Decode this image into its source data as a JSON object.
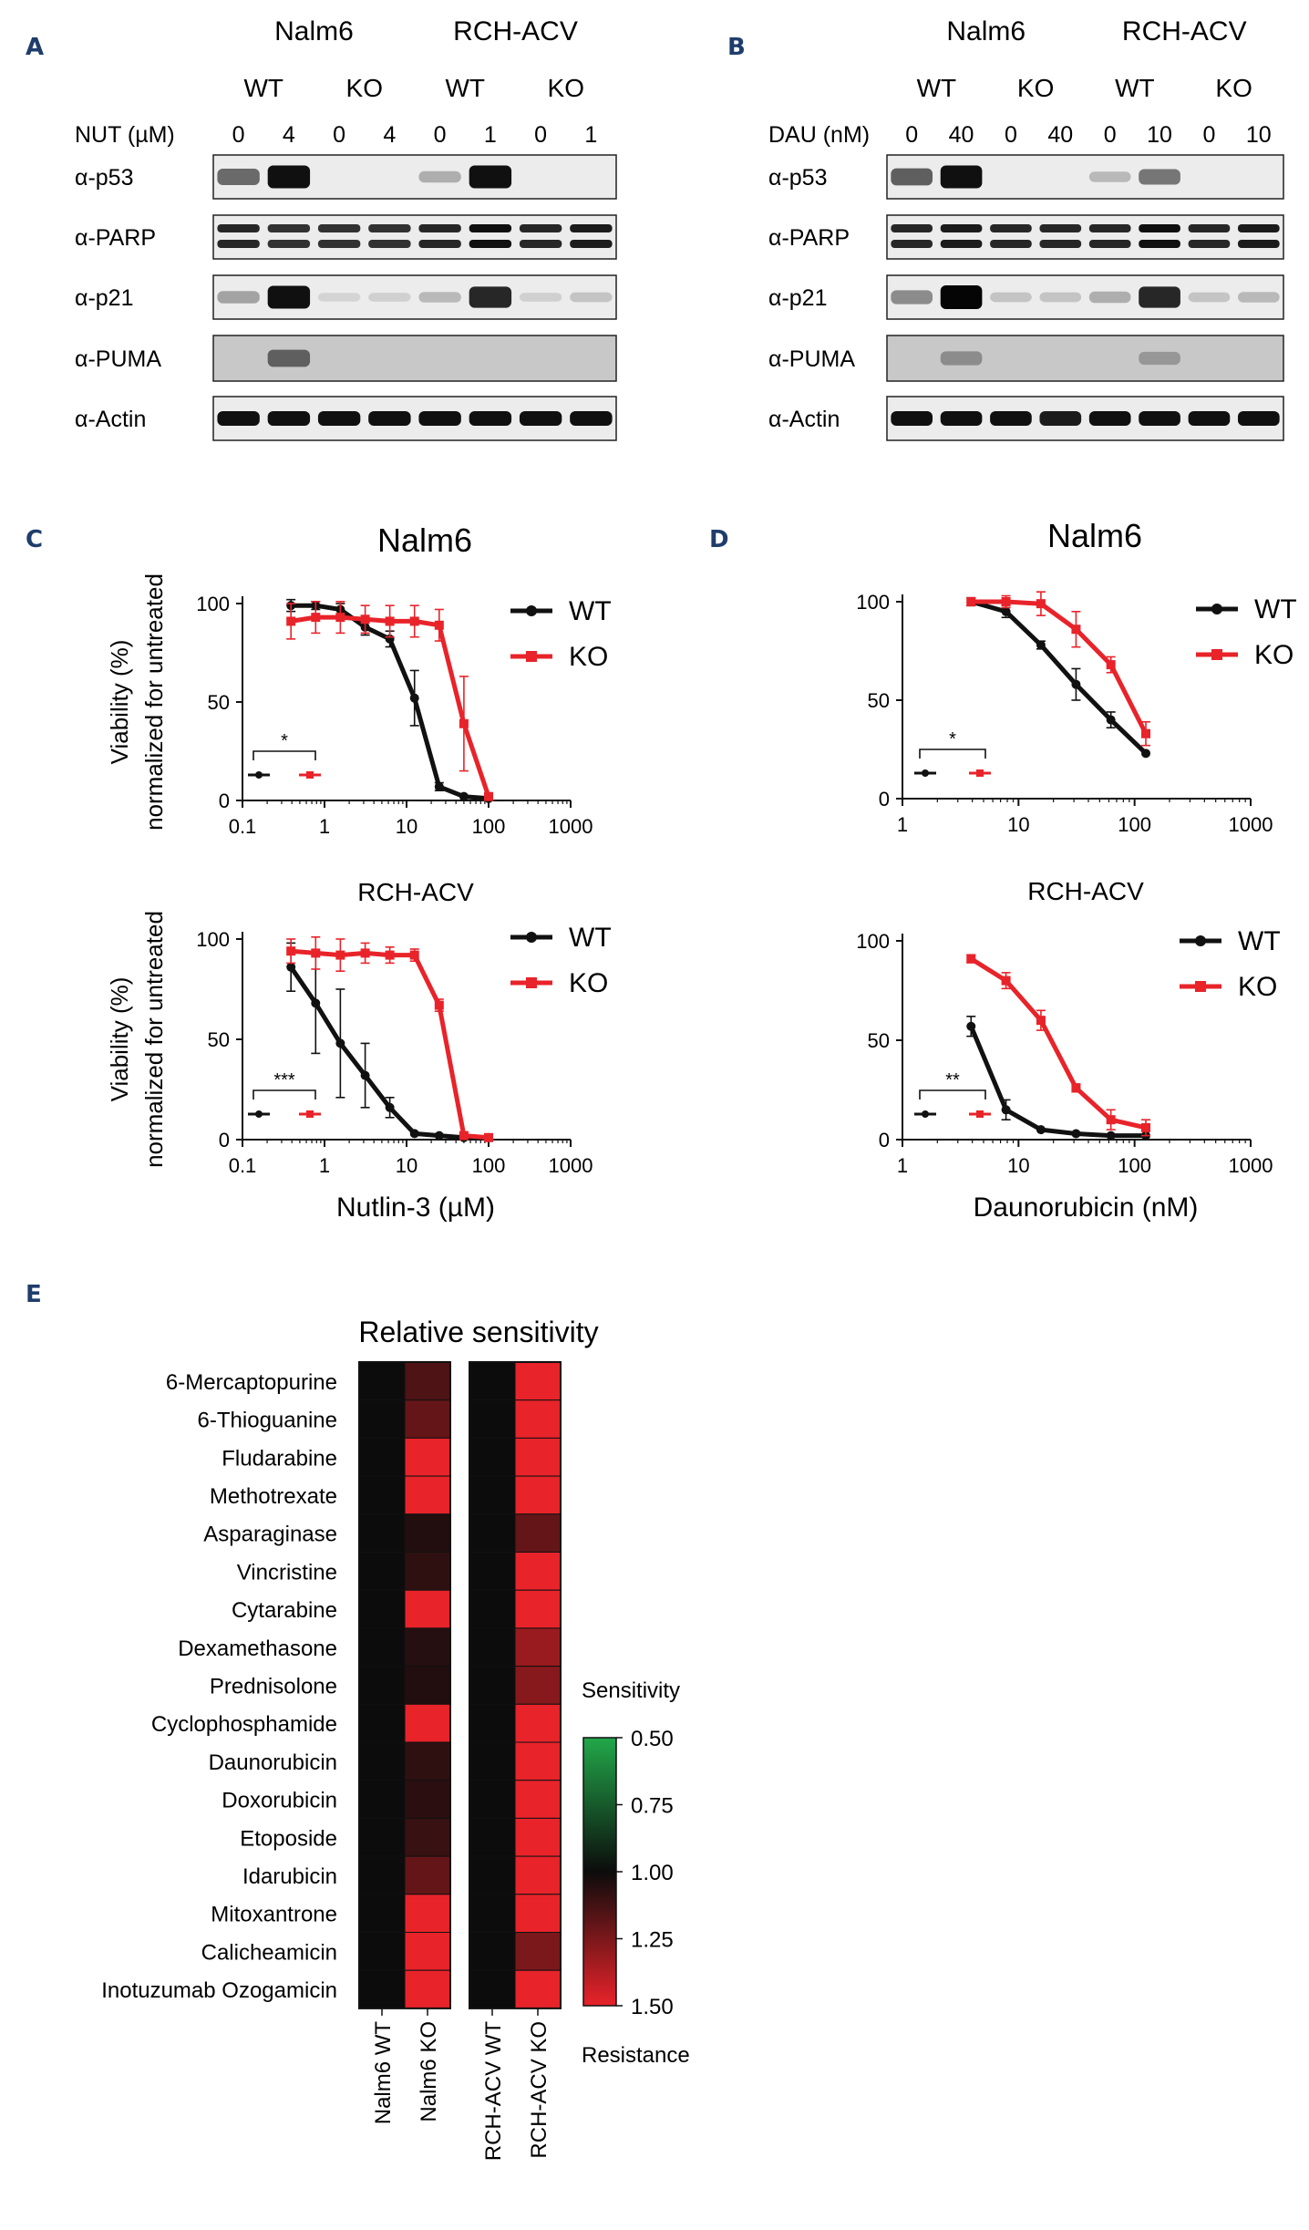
{
  "panel_labels": [
    "A",
    "B",
    "C",
    "D",
    "E"
  ],
  "blots": [
    {
      "id": "A",
      "cell_lines": [
        "Nalm6",
        "RCH-ACV"
      ],
      "genotypes": [
        "WT",
        "KO",
        "WT",
        "KO"
      ],
      "treatment_label": "NUT (µM)",
      "doses": [
        "0",
        "4",
        "0",
        "4",
        "0",
        "1",
        "0",
        "1"
      ],
      "rows": [
        "α-p53",
        "α-PARP",
        "α-p21",
        "α-PUMA",
        "α-Actin"
      ],
      "band_intensity": {
        "α-p53": [
          0.55,
          0.95,
          0,
          0,
          0.25,
          0.95,
          0,
          0
        ],
        "α-PARP": [
          0.85,
          0.8,
          0.8,
          0.8,
          0.85,
          0.95,
          0.85,
          0.9
        ],
        "α-p21": [
          0.3,
          0.95,
          0.08,
          0.1,
          0.2,
          0.85,
          0.1,
          0.15
        ],
        "α-PUMA": [
          0,
          0.6,
          0,
          0,
          0,
          0,
          0,
          0
        ],
        "α-Actin": [
          0.95,
          0.95,
          0.95,
          0.95,
          0.95,
          0.95,
          0.95,
          0.95
        ]
      }
    },
    {
      "id": "B",
      "cell_lines": [
        "Nalm6",
        "RCH-ACV"
      ],
      "genotypes": [
        "WT",
        "KO",
        "WT",
        "KO"
      ],
      "treatment_label": "DAU (nM)",
      "doses": [
        "0",
        "40",
        "0",
        "40",
        "0",
        "10",
        "0",
        "10"
      ],
      "rows": [
        "α-p53",
        "α-PARP",
        "α-p21",
        "α-PUMA",
        "α-Actin"
      ],
      "band_intensity": {
        "α-p53": [
          0.6,
          0.95,
          0,
          0,
          0.2,
          0.5,
          0,
          0
        ],
        "α-PARP": [
          0.85,
          0.9,
          0.85,
          0.85,
          0.85,
          0.95,
          0.85,
          0.9
        ],
        "α-p21": [
          0.4,
          1.0,
          0.15,
          0.15,
          0.25,
          0.85,
          0.15,
          0.2
        ],
        "α-PUMA": [
          0,
          0.4,
          0,
          0,
          0,
          0.35,
          0,
          0
        ],
        "α-Actin": [
          0.95,
          0.95,
          0.95,
          0.9,
          0.95,
          0.95,
          0.95,
          0.95
        ]
      }
    }
  ],
  "chart_data": [
    {
      "panel": "C",
      "type": "line",
      "title": "Nalm6",
      "xscale": "log",
      "xlim": [
        0.1,
        1000
      ],
      "ylim": [
        0,
        100
      ],
      "xticks": [
        "0.1",
        "1",
        "10",
        "100",
        "1000"
      ],
      "yticks": [
        "0",
        "50",
        "100"
      ],
      "ylabel": [
        "Viability (%)",
        "normalized for untreated"
      ],
      "xlabel": "",
      "significance": "*",
      "series": [
        {
          "name": "WT",
          "color": "#111111",
          "x": [
            0.39,
            0.78,
            1.56,
            3.13,
            6.25,
            12.5,
            25,
            50,
            100
          ],
          "y": [
            99,
            99,
            97,
            88,
            82,
            52,
            7,
            2,
            1
          ],
          "err": [
            3,
            2,
            3,
            4,
            4,
            14,
            2,
            1,
            1
          ]
        },
        {
          "name": "KO",
          "color": "#e8232a",
          "x": [
            0.39,
            0.78,
            1.56,
            3.13,
            6.25,
            12.5,
            25,
            50,
            100
          ],
          "y": [
            91,
            93,
            93,
            92,
            91,
            91,
            89,
            39,
            2
          ],
          "err": [
            9,
            8,
            8,
            7,
            8,
            8,
            8,
            24,
            1
          ]
        }
      ]
    },
    {
      "panel": "D",
      "type": "line",
      "title": "Nalm6",
      "xscale": "log",
      "xlim": [
        1,
        1000
      ],
      "ylim": [
        0,
        100
      ],
      "xticks": [
        "1",
        "10",
        "100",
        "1000"
      ],
      "yticks": [
        "0",
        "50",
        "100"
      ],
      "ylabel": [],
      "xlabel": "",
      "significance": "*",
      "series": [
        {
          "name": "WT",
          "color": "#111111",
          "x": [
            3.9,
            7.8,
            15.6,
            31.3,
            62.5,
            125
          ],
          "y": [
            100,
            95,
            78,
            58,
            40,
            23
          ],
          "err": [
            2,
            3,
            2,
            8,
            4,
            1
          ]
        },
        {
          "name": "KO",
          "color": "#e8232a",
          "x": [
            3.9,
            7.8,
            15.6,
            31.3,
            62.5,
            125
          ],
          "y": [
            100,
            100,
            99,
            86,
            68,
            33
          ],
          "err": [
            2,
            3,
            6,
            9,
            4,
            6
          ]
        }
      ]
    },
    {
      "panel": "C",
      "type": "line",
      "title": "RCH-ACV",
      "xscale": "log",
      "xlim": [
        0.1,
        1000
      ],
      "ylim": [
        0,
        100
      ],
      "xticks": [
        "0.1",
        "1",
        "10",
        "100",
        "1000"
      ],
      "yticks": [
        "0",
        "50",
        "100"
      ],
      "ylabel": [
        "Viability (%)",
        "normalized for untreated"
      ],
      "xlabel": "Nutlin-3 (µM)",
      "significance": "***",
      "series": [
        {
          "name": "WT",
          "color": "#111111",
          "x": [
            0.39,
            0.78,
            1.56,
            3.13,
            6.25,
            12.5,
            25,
            50,
            100
          ],
          "y": [
            86,
            68,
            48,
            32,
            16,
            3,
            2,
            1,
            1
          ],
          "err": [
            12,
            25,
            27,
            16,
            5,
            1,
            1,
            1,
            1
          ]
        },
        {
          "name": "KO",
          "color": "#e8232a",
          "x": [
            0.39,
            0.78,
            1.56,
            3.13,
            6.25,
            12.5,
            25,
            50,
            100
          ],
          "y": [
            94,
            93,
            92,
            93,
            92,
            92,
            67,
            2,
            1
          ],
          "err": [
            6,
            8,
            8,
            5,
            4,
            3,
            3,
            1,
            1
          ]
        }
      ]
    },
    {
      "panel": "D",
      "type": "line",
      "title": "RCH-ACV",
      "xscale": "log",
      "xlim": [
        1,
        1000
      ],
      "ylim": [
        0,
        100
      ],
      "xticks": [
        "1",
        "10",
        "100",
        "1000"
      ],
      "yticks": [
        "0",
        "50",
        "100"
      ],
      "ylabel": [],
      "xlabel": "Daunorubicin (nM)",
      "significance": "**",
      "series": [
        {
          "name": "WT",
          "color": "#111111",
          "x": [
            3.9,
            7.8,
            15.6,
            31.3,
            62.5,
            125
          ],
          "y": [
            57,
            15,
            5,
            3,
            2,
            2
          ],
          "err": [
            5,
            5,
            1,
            1,
            1,
            1
          ]
        },
        {
          "name": "KO",
          "color": "#e8232a",
          "x": [
            3.9,
            7.8,
            15.6,
            31.3,
            62.5,
            125
          ],
          "y": [
            91,
            80,
            60,
            26,
            10,
            6
          ],
          "err": [
            2,
            4,
            5,
            2,
            5,
            4
          ]
        }
      ]
    },
    {
      "panel": "E",
      "type": "heatmap",
      "title": "Relative sensitivity",
      "rows": [
        "6-Mercaptopurine",
        "6-Thioguanine",
        "Fludarabine",
        "Methotrexate",
        "Asparaginase",
        "Vincristine",
        "Cytarabine",
        "Dexamethasone",
        "Prednisolone",
        "Cyclophosphamide",
        "Daunorubicin",
        "Doxorubicin",
        "Etoposide",
        "Idarubicin",
        "Mitoxantrone",
        "Calicheamicin",
        "Inotuzumab Ozogamicin"
      ],
      "columns": [
        "Nalm6 WT",
        "Nalm6 KO",
        "RCH-ACV WT",
        "RCH-ACV KO"
      ],
      "values": [
        [
          1.0,
          1.15,
          1.0,
          1.5
        ],
        [
          1.0,
          1.2,
          1.0,
          1.5
        ],
        [
          1.0,
          1.5,
          1.0,
          1.5
        ],
        [
          1.0,
          1.5,
          1.0,
          1.5
        ],
        [
          1.0,
          1.05,
          1.0,
          1.2
        ],
        [
          1.0,
          1.08,
          1.0,
          1.5
        ],
        [
          1.0,
          1.5,
          1.0,
          1.5
        ],
        [
          1.0,
          1.06,
          1.0,
          1.32
        ],
        [
          1.0,
          1.05,
          1.0,
          1.28
        ],
        [
          1.0,
          1.5,
          1.0,
          1.5
        ],
        [
          1.0,
          1.08,
          1.0,
          1.5
        ],
        [
          1.0,
          1.07,
          1.0,
          1.5
        ],
        [
          1.0,
          1.1,
          1.0,
          1.5
        ],
        [
          1.0,
          1.2,
          1.0,
          1.5
        ],
        [
          1.0,
          1.5,
          1.0,
          1.5
        ],
        [
          1.0,
          1.5,
          1.0,
          1.25
        ],
        [
          1.0,
          1.5,
          1.0,
          1.5
        ]
      ],
      "colorbar": {
        "title": "Sensitivity",
        "bottom_label": "Resistance",
        "ticks": [
          "0.50",
          "0.75",
          "1.00",
          "1.25",
          "1.50"
        ],
        "range": [
          0.5,
          1.5
        ],
        "low_color": "#22a84a",
        "mid_color": "#0c0c0c",
        "high_color": "#e8232a"
      }
    }
  ]
}
